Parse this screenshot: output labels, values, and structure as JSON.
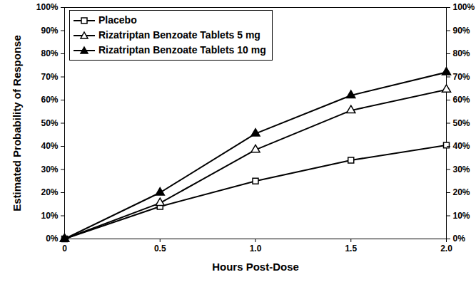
{
  "chart_data": {
    "type": "line",
    "x_label": "Hours Post-Dose",
    "y_label": "Estimated Probability of Response",
    "x": [
      0,
      0.5,
      1.0,
      1.5,
      2.0
    ],
    "series": [
      {
        "name": "Placebo",
        "color": "#000000",
        "marker": "square-open",
        "line_style": "solid",
        "values": [
          0,
          14,
          25,
          34,
          40.5
        ]
      },
      {
        "name": "Rizatriptan Benzoate Tablets 5 mg",
        "color": "#000000",
        "marker": "triangle-open",
        "line_style": "solid",
        "values": [
          0,
          15.5,
          38.5,
          55.5,
          64.5
        ]
      },
      {
        "name": "Rizatriptan Benzoate Tablets 10 mg",
        "color": "#000000",
        "marker": "triangle",
        "line_style": "solid",
        "values": [
          0,
          20,
          45.5,
          62,
          72
        ]
      }
    ],
    "xlim": [
      0,
      2
    ],
    "xticks": [
      0,
      0.5,
      {
        "value": 1,
        "label": "1.0"
      },
      1.5,
      {
        "value": 2,
        "label": "2.0"
      }
    ],
    "ylim": [
      0,
      100
    ],
    "yticks": [
      {
        "value": 0,
        "label": "0%"
      },
      {
        "value": 10,
        "label": "10%"
      },
      {
        "value": 20,
        "label": "20%"
      },
      {
        "value": 30,
        "label": "30%"
      },
      {
        "value": 40,
        "label": "40%"
      },
      {
        "value": 50,
        "label": "50%"
      },
      {
        "value": 60,
        "label": "60%"
      },
      {
        "value": 70,
        "label": "70%"
      },
      {
        "value": 80,
        "label": "80%"
      },
      {
        "value": 90,
        "label": "90%"
      },
      {
        "value": 100,
        "label": "100%"
      }
    ],
    "y2lim": [
      0,
      100
    ],
    "y2ticks": [
      {
        "value": 0,
        "label": "0%"
      },
      {
        "value": 10,
        "label": "10%"
      },
      {
        "value": 20,
        "label": "20%"
      },
      {
        "value": 30,
        "label": "30%"
      },
      {
        "value": 40,
        "label": "40%"
      },
      {
        "value": 50,
        "label": "50%"
      },
      {
        "value": 60,
        "label": "60%"
      },
      {
        "value": 70,
        "label": "70%"
      },
      {
        "value": 80,
        "label": "80%"
      },
      {
        "value": 90,
        "label": "90%"
      },
      {
        "value": 100,
        "label": "100%"
      }
    ],
    "grid": false,
    "legend": "top-left"
  }
}
